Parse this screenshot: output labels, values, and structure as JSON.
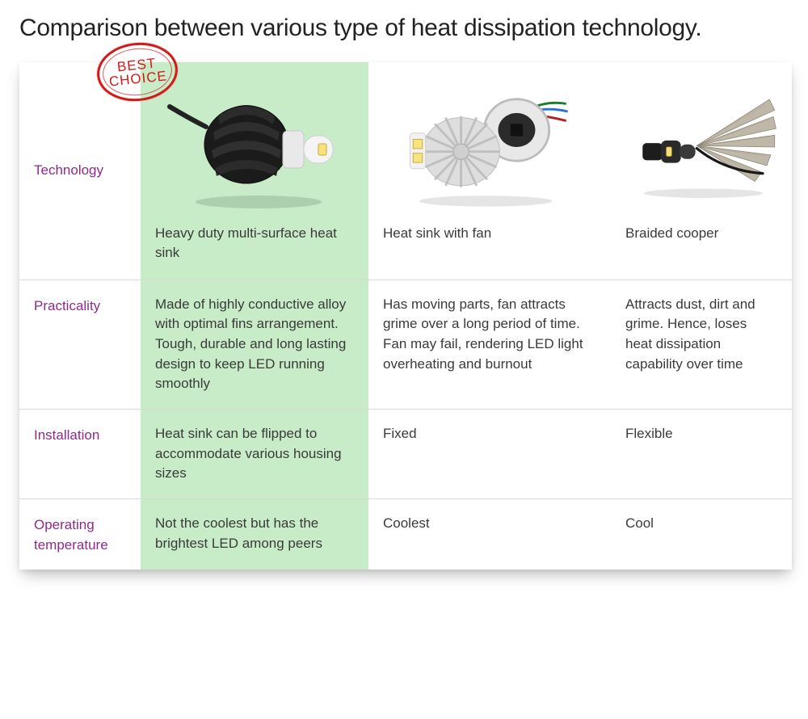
{
  "title": "Comparison between various type of heat dissipation technology.",
  "stamp": {
    "line1": "BEST",
    "line2": "CHOICE",
    "color": "#d11a1a"
  },
  "colors": {
    "highlight_bg": "#c7ecc7",
    "label_text": "#8e2a8e",
    "body_text": "#3a3a3a",
    "border": "#d9d9d9",
    "background": "#ffffff"
  },
  "columns": {
    "col1": {
      "name": "Heavy duty multi-surface heat sink",
      "highlighted": true
    },
    "col2": {
      "name": "Heat sink with fan",
      "highlighted": false
    },
    "col3": {
      "name": "Braided cooper",
      "highlighted": false
    }
  },
  "rows": {
    "technology": {
      "label": "Technology"
    },
    "practicality": {
      "label": "Practicality",
      "col1": "Made of highly conductive alloy with optimal fins arrangement.\nTough, durable and long lasting design to keep LED running smoothly",
      "col2": "Has moving parts, fan attracts grime over a long period of time. Fan may fail, rendering LED light overheating and burnout",
      "col3": "Attracts dust, dirt and grime.  Hence, loses heat dissipation capability over time"
    },
    "installation": {
      "label": "Installation",
      "col1": "Heat sink can be flipped to accommodate various housing sizes",
      "col2": "Fixed",
      "col3": "Flexible"
    },
    "operating_temperature": {
      "label": "Operating temperature",
      "col1": "Not the coolest but has the brightest LED among peers",
      "col2": "Coolest",
      "col3": "Cool"
    }
  }
}
